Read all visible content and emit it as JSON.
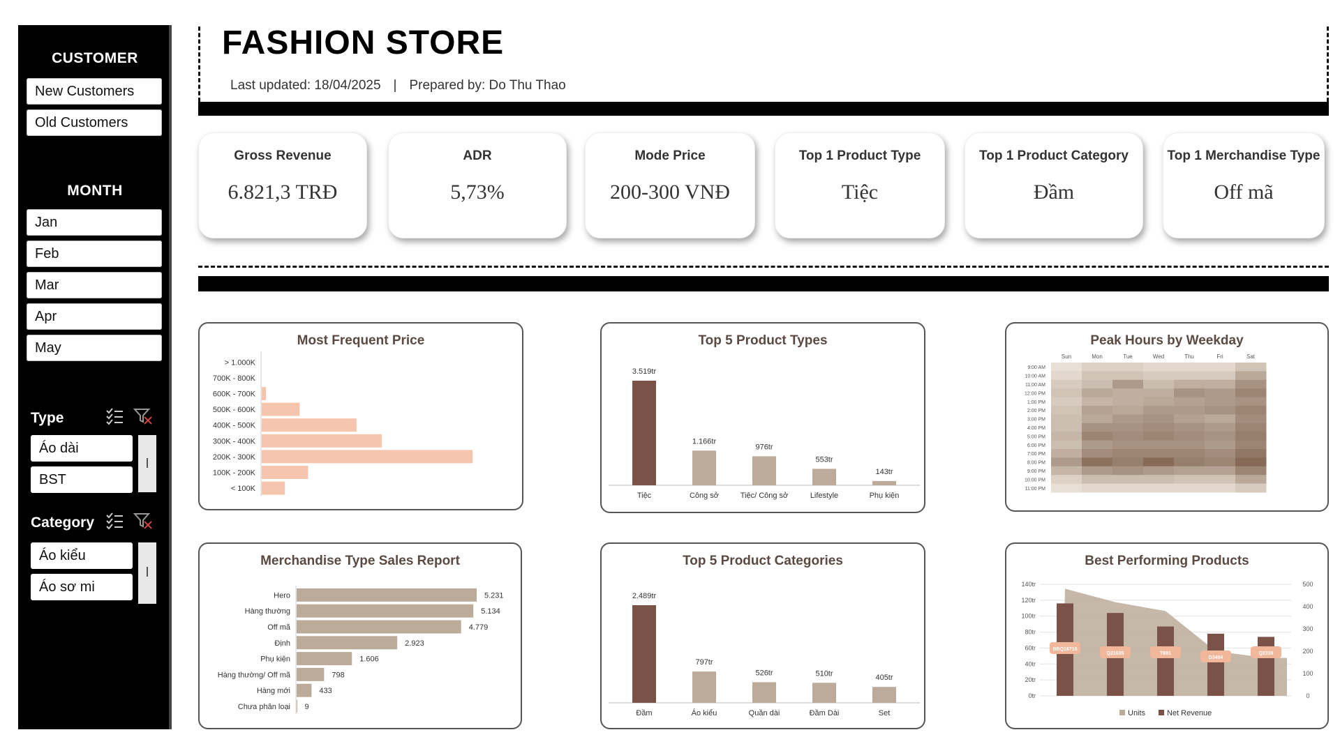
{
  "sidebar": {
    "customer_title": "CUSTOMER",
    "customer_buttons": [
      "New Customers",
      "Old Customers"
    ],
    "month_title": "MONTH",
    "months": [
      "Jan",
      "Feb",
      "Mar",
      "Apr",
      "May"
    ],
    "type_title": "Type",
    "type_items": [
      "Áo dài",
      "BST"
    ],
    "category_title": "Category",
    "category_items": [
      "Áo kiểu",
      "Áo sơ mi"
    ]
  },
  "header": {
    "title": "FASHION STORE",
    "last_updated": "Last updated: 18/04/2025",
    "separator": "|",
    "prepared_by": "Prepared by: Do Thu Thao"
  },
  "kpis": [
    {
      "label": "Gross Revenue",
      "value": "6.821,3 TRĐ"
    },
    {
      "label": "ADR",
      "value": "5,73%"
    },
    {
      "label": "Mode Price",
      "value": "200-300 VNĐ"
    },
    {
      "label": "Top 1 Product Type",
      "value": "Tiệc"
    },
    {
      "label": "Top 1 Product Category",
      "value": "Đầm"
    },
    {
      "label": "Top 1 Merchandise Type",
      "value": "Off mã"
    }
  ],
  "colors": {
    "salmon": "#f5c6ad",
    "dark_brown": "#7b5248",
    "beige": "#bcab9a",
    "panel_title": "#5a4a42"
  },
  "chart_data": [
    {
      "id": "most-frequent-price",
      "type": "bar",
      "orientation": "horizontal",
      "title": "Most Frequent Price",
      "categories": [
        "> 1.000K",
        "700K - 800K",
        "600K - 700K",
        "500K - 600K",
        "400K - 500K",
        "300K - 400K",
        "200K - 300K",
        "100K - 200K",
        "< 100K"
      ],
      "values": [
        0,
        0,
        2,
        18,
        45,
        57,
        100,
        22,
        11
      ],
      "value_unit": "relative frequency (approx.)",
      "xlabel": "",
      "ylabel": "",
      "grid": false
    },
    {
      "id": "top5-product-types",
      "type": "bar",
      "title": "Top 5 Product Types",
      "categories": [
        "Tiệc",
        "Công sở",
        "Tiệc/ Công sở",
        "Lifestyle",
        "Phụ kiện"
      ],
      "values": [
        3519,
        1166,
        976,
        553,
        143
      ],
      "data_labels": [
        "3.519tr",
        "1.166tr",
        "976tr",
        "553tr",
        "143tr"
      ],
      "xlabel": "",
      "ylabel": "",
      "grid": false
    },
    {
      "id": "peak-hours-weekday",
      "type": "heatmap",
      "title": "Peak Hours by Weekday",
      "x": [
        "Sun",
        "Mon",
        "Tue",
        "Wed",
        "Thu",
        "Fri",
        "Sat"
      ],
      "y": [
        "9:00 AM",
        "10:00 AM",
        "11:00 AM",
        "12:00 PM",
        "1:00 PM",
        "2:00 PM",
        "3:00 PM",
        "4:00 PM",
        "5:00 PM",
        "6:00 PM",
        "7:00 PM",
        "8:00 PM",
        "9:00 PM",
        "10:00 PM",
        "11:00 PM"
      ],
      "values": [
        [
          0.05,
          0.15,
          0.15,
          0.1,
          0.1,
          0.1,
          0.25
        ],
        [
          0.1,
          0.25,
          0.25,
          0.2,
          0.2,
          0.2,
          0.45
        ],
        [
          0.2,
          0.3,
          0.55,
          0.3,
          0.4,
          0.4,
          0.6
        ],
        [
          0.25,
          0.45,
          0.4,
          0.4,
          0.6,
          0.55,
          0.7
        ],
        [
          0.2,
          0.35,
          0.4,
          0.45,
          0.5,
          0.55,
          0.6
        ],
        [
          0.25,
          0.5,
          0.45,
          0.55,
          0.55,
          0.6,
          0.7
        ],
        [
          0.3,
          0.45,
          0.55,
          0.6,
          0.5,
          0.45,
          0.65
        ],
        [
          0.3,
          0.6,
          0.6,
          0.65,
          0.6,
          0.55,
          0.7
        ],
        [
          0.35,
          0.7,
          0.65,
          0.7,
          0.65,
          0.6,
          0.75
        ],
        [
          0.3,
          0.55,
          0.6,
          0.6,
          0.6,
          0.55,
          0.7
        ],
        [
          0.4,
          0.65,
          0.7,
          0.7,
          0.7,
          0.65,
          0.8
        ],
        [
          0.55,
          0.85,
          0.75,
          0.9,
          0.75,
          0.7,
          0.9
        ],
        [
          0.35,
          0.55,
          0.6,
          0.55,
          0.5,
          0.5,
          0.7
        ],
        [
          0.15,
          0.3,
          0.3,
          0.3,
          0.25,
          0.25,
          0.45
        ],
        [
          0.05,
          0.1,
          0.1,
          0.1,
          0.1,
          0.1,
          0.2
        ]
      ],
      "value_unit": "relative intensity (approx.)"
    },
    {
      "id": "merchandise-type-sales",
      "type": "bar",
      "orientation": "horizontal",
      "title": "Merchandise Type Sales Report",
      "categories": [
        "Hero",
        "Hàng thường",
        "Off mã",
        "Định",
        "Phụ kiện",
        "Hàng thường/ Off mã",
        "Hàng mới",
        "Chưa phân loại"
      ],
      "values": [
        5231,
        5134,
        4779,
        2923,
        1606,
        798,
        433,
        9
      ],
      "data_labels": [
        "5.231",
        "5.134",
        "4.779",
        "2.923",
        "1.606",
        "798",
        "433",
        "9"
      ],
      "xlabel": "",
      "ylabel": "",
      "grid": false
    },
    {
      "id": "top5-product-categories",
      "type": "bar",
      "title": "Top 5 Product Categories",
      "categories": [
        "Đầm",
        "Áo kiểu",
        "Quần dài",
        "Đầm Dài",
        "Set"
      ],
      "values": [
        2489,
        797,
        526,
        510,
        405
      ],
      "data_labels": [
        "2.489tr",
        "797tr",
        "526tr",
        "510tr",
        "405tr"
      ],
      "xlabel": "",
      "ylabel": "",
      "grid": false
    },
    {
      "id": "best-performing-products",
      "type": "bar",
      "title": "Best Performing Products",
      "categories": [
        "BBQ16715",
        "Q21635",
        "T691",
        "D3494",
        "Q2339"
      ],
      "series": [
        {
          "name": "Units",
          "type": "area",
          "axis": "right",
          "values": [
            480,
            420,
            380,
            200,
            170
          ]
        },
        {
          "name": "Net Revenue",
          "type": "bar",
          "axis": "left",
          "values": [
            116,
            104,
            87,
            78,
            74
          ]
        }
      ],
      "ylim_left": [
        0,
        140
      ],
      "yticks_left": [
        "0tr",
        "20tr",
        "40tr",
        "60tr",
        "80tr",
        "100tr",
        "120tr",
        "140tr"
      ],
      "ylim_right": [
        0,
        500
      ],
      "yticks_right": [
        "0",
        "100",
        "200",
        "300",
        "400",
        "500"
      ],
      "legend": "bottom",
      "grid": true
    }
  ]
}
